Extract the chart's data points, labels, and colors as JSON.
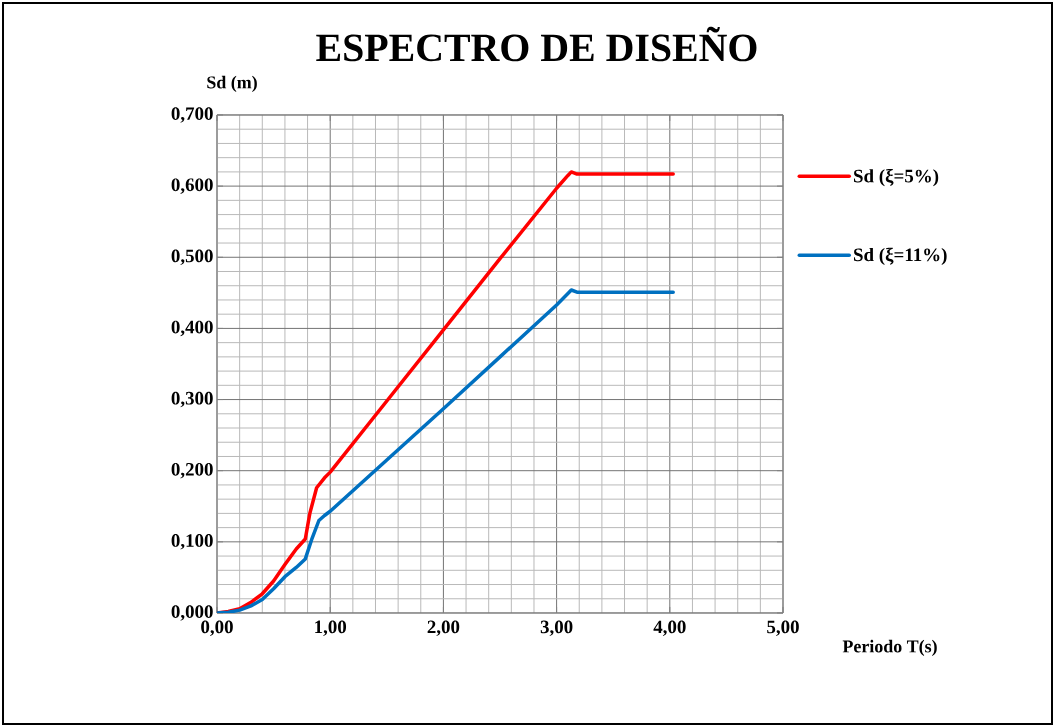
{
  "chart_data": {
    "type": "line",
    "title": "ESPECTRO DE DISEÑO",
    "xlabel": "Periodo T(s)",
    "ylabel": "Sd (m)",
    "series": [
      {
        "name": "Sd (ξ=5%)",
        "color": "#ff0000",
        "x": [
          0,
          0.1,
          0.2,
          0.3,
          0.4,
          0.5,
          0.6,
          0.7,
          0.78,
          0.82,
          0.88,
          0.95,
          1.0,
          1.5,
          2.0,
          2.5,
          3.0,
          3.1,
          3.13,
          3.18,
          3.5,
          4.03
        ],
        "values": [
          0,
          0.002,
          0.006,
          0.015,
          0.027,
          0.045,
          0.068,
          0.09,
          0.104,
          0.14,
          0.176,
          0.19,
          0.198,
          0.298,
          0.398,
          0.498,
          0.597,
          0.615,
          0.62,
          0.617,
          0.617,
          0.617
        ]
      },
      {
        "name": "Sd (ξ=11%)",
        "color": "#0070c0",
        "x": [
          0,
          0.1,
          0.2,
          0.3,
          0.4,
          0.5,
          0.6,
          0.7,
          0.78,
          0.84,
          0.9,
          0.95,
          1.0,
          1.5,
          2.0,
          2.5,
          3.0,
          3.1,
          3.13,
          3.18,
          3.5,
          4.03
        ],
        "values": [
          0,
          0.001,
          0.004,
          0.01,
          0.019,
          0.034,
          0.051,
          0.064,
          0.076,
          0.105,
          0.13,
          0.137,
          0.143,
          0.215,
          0.287,
          0.36,
          0.433,
          0.449,
          0.454,
          0.451,
          0.451,
          0.451
        ]
      }
    ],
    "xlim": [
      0,
      5
    ],
    "ylim": [
      0,
      0.7
    ],
    "xticks": [
      {
        "value": 0,
        "label": "0,00"
      },
      {
        "value": 1,
        "label": "1,00"
      },
      {
        "value": 2,
        "label": "2,00"
      },
      {
        "value": 3,
        "label": "3,00"
      },
      {
        "value": 4,
        "label": "4,00"
      },
      {
        "value": 5,
        "label": "5,00"
      }
    ],
    "yticks": [
      {
        "value": 0,
        "label": "0,000"
      },
      {
        "value": 0.1,
        "label": "0,100"
      },
      {
        "value": 0.2,
        "label": "0,200"
      },
      {
        "value": 0.3,
        "label": "0,300"
      },
      {
        "value": 0.4,
        "label": "0,400"
      },
      {
        "value": 0.5,
        "label": "0,500"
      },
      {
        "value": 0.6,
        "label": "0,600"
      },
      {
        "value": 0.7,
        "label": "0,700"
      }
    ],
    "grid": true,
    "legend": "right",
    "marker": "none",
    "line_style": "solid"
  }
}
